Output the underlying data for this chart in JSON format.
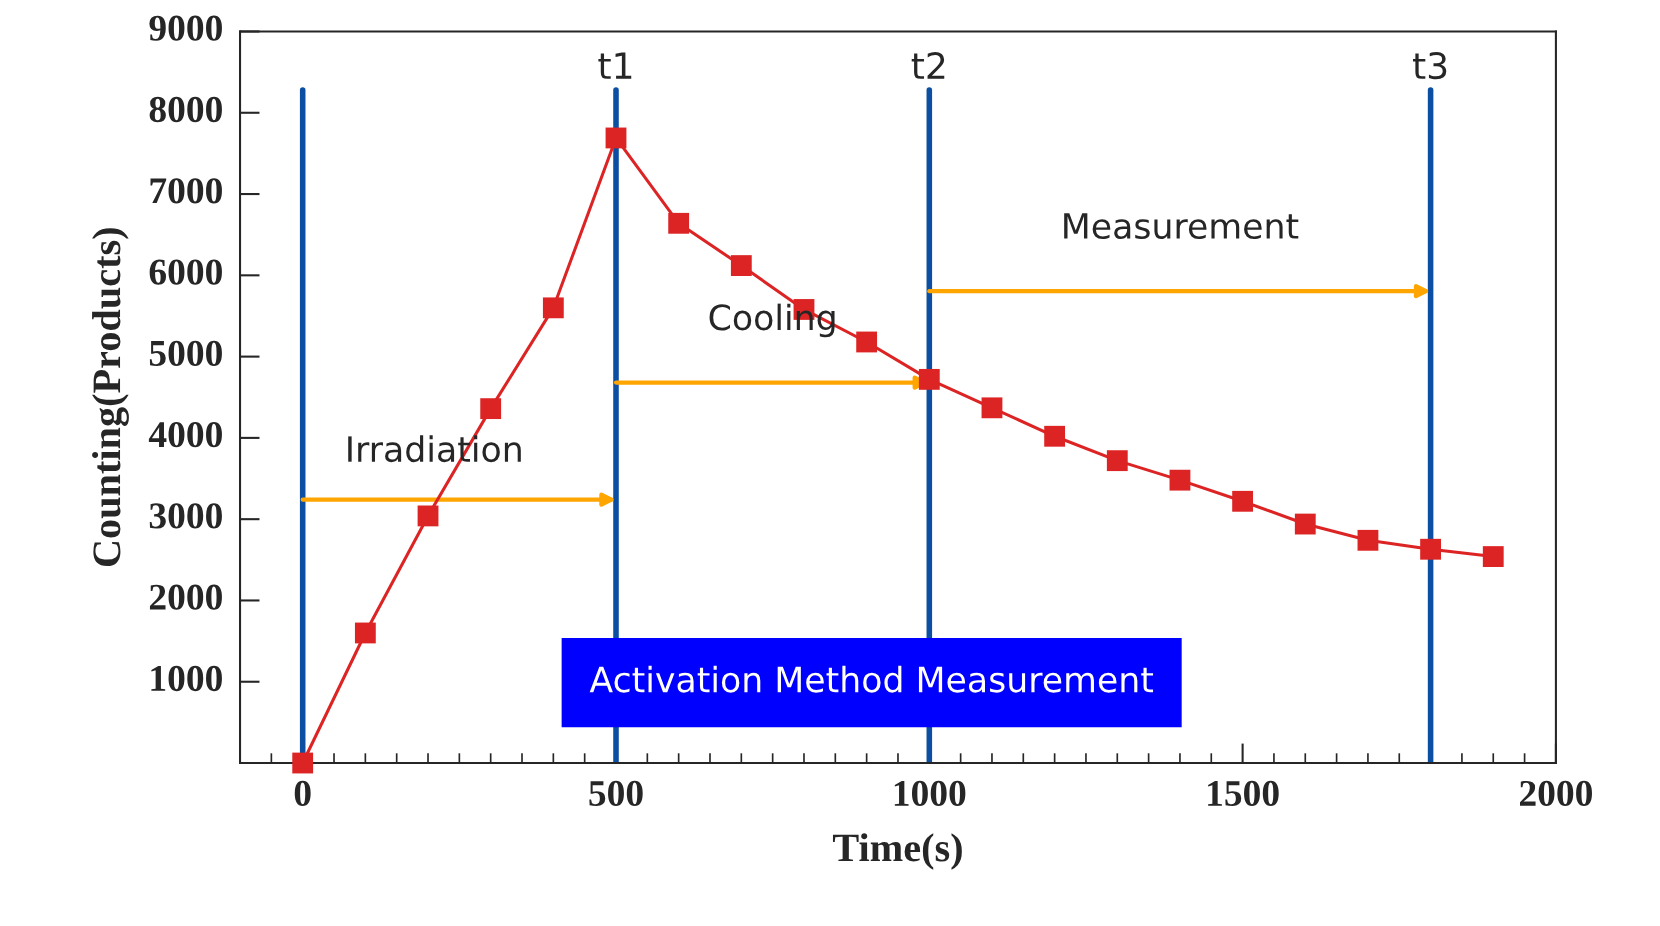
{
  "chart_data": {
    "type": "line",
    "xlabel": "Time(s)",
    "ylabel": "Counting(Products)",
    "x": [
      0,
      100,
      200,
      300,
      400,
      500,
      600,
      700,
      800,
      900,
      1000,
      1100,
      1200,
      1300,
      1400,
      1500,
      1600,
      1700,
      1800,
      1900
    ],
    "series": [
      {
        "color": "#dd2424",
        "values": [
          0,
          1600,
          3040,
          4360,
          5600,
          7690,
          6640,
          6120,
          5580,
          5180,
          4720,
          4370,
          4020,
          3720,
          3480,
          3220,
          2940,
          2740,
          2630,
          2540
        ]
      }
    ],
    "marker": "square",
    "line_style": "solid",
    "grid": false,
    "xlim": [
      -100,
      2000
    ],
    "xticks": [
      0,
      500,
      1000,
      1500,
      2000
    ],
    "ylim": [
      0,
      9000
    ],
    "yticks": [
      1000,
      2000,
      3000,
      4000,
      5000,
      6000,
      7000,
      8000,
      9000
    ],
    "ref_lines": [
      {
        "axis": "x",
        "value": 0,
        "label": null,
        "color": "#0b4ea2"
      },
      {
        "axis": "x",
        "value": 500,
        "label": "t1",
        "color": "#0b4ea2"
      },
      {
        "axis": "x",
        "value": 1000,
        "label": "t2",
        "color": "#0b4ea2"
      },
      {
        "axis": "x",
        "value": 1800,
        "label": "t3",
        "color": "#0b4ea2"
      }
    ],
    "annotations": [
      "Irradiation",
      "Cooling",
      "Measurement",
      "Activation Method Measurement"
    ]
  }
}
